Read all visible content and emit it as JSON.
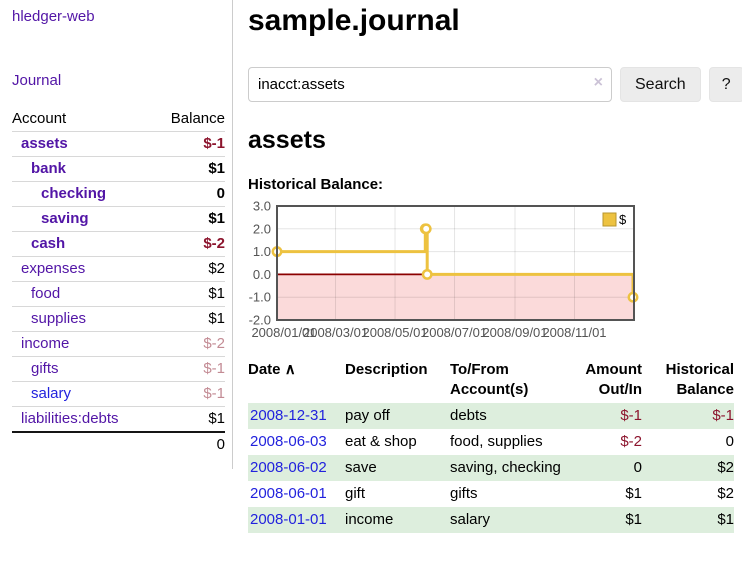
{
  "brand": "hledger-web",
  "sidebar": {
    "journal_link": "Journal",
    "accounts_table": {
      "headers": [
        "Account",
        "Balance"
      ],
      "rows": [
        {
          "account": "assets",
          "balance": "$-1",
          "depth": 0,
          "in_query": true
        },
        {
          "account": "bank",
          "balance": "$1",
          "depth": 1,
          "in_query": true
        },
        {
          "account": "checking",
          "balance": "0",
          "depth": 2,
          "in_query": true
        },
        {
          "account": "saving",
          "balance": "$1",
          "depth": 2,
          "in_query": true
        },
        {
          "account": "cash",
          "balance": "$-2",
          "depth": 1,
          "in_query": true
        },
        {
          "account": "expenses",
          "balance": "$2",
          "depth": 0,
          "in_query": false
        },
        {
          "account": "food",
          "balance": "$1",
          "depth": 1,
          "in_query": false
        },
        {
          "account": "supplies",
          "balance": "$1",
          "depth": 1,
          "in_query": false
        },
        {
          "account": "income",
          "balance": "$-2",
          "depth": 0,
          "in_query": false
        },
        {
          "account": "gifts",
          "balance": "$-1",
          "depth": 1,
          "in_query": false
        },
        {
          "account": "salary",
          "balance": "$-1",
          "depth": 1,
          "in_query": false,
          "link_color": "blue"
        },
        {
          "account": "liabilities:debts",
          "balance": "$1",
          "depth": 0,
          "in_query": false
        }
      ],
      "total": "0"
    }
  },
  "header": {
    "title": "sample.journal"
  },
  "search": {
    "value": "inacct:assets",
    "clear_icon": "×",
    "button_label": "Search",
    "help_label": "?"
  },
  "account_page": {
    "title": "assets",
    "chart_label": "Historical Balance:"
  },
  "chart_data": {
    "type": "line",
    "title": "Historical Balance:",
    "style": "step",
    "x_start": "2008-01-01",
    "x_end": "2009-01-01",
    "x_ticks": [
      "2008/01/01",
      "2008/03/01",
      "2008/05/01",
      "2008/07/01",
      "2008/09/01",
      "2008/11/01"
    ],
    "y_ticks": [
      3.0,
      2.0,
      1.0,
      0.0,
      -1.0,
      -2.0
    ],
    "ylim": [
      -2,
      3
    ],
    "grid": true,
    "legend_position": "top-right",
    "negative_region_color": "#fbdada",
    "zero_line_color": "#8b0000",
    "axis_text_color": "#545454",
    "series": [
      {
        "name": "$",
        "color": "#edc240",
        "points": [
          {
            "date": "2008-01-01",
            "value": 1
          },
          {
            "date": "2008-06-01",
            "value": 2
          },
          {
            "date": "2008-06-02",
            "value": 2
          },
          {
            "date": "2008-06-03",
            "value": 0
          },
          {
            "date": "2008-12-31",
            "value": -1
          }
        ]
      }
    ]
  },
  "register": {
    "sort_icon": "∧",
    "columns": [
      {
        "label": "Date"
      },
      {
        "label": "Description"
      },
      {
        "label": "To/From Account(s)"
      },
      {
        "label": "Amount Out/In"
      },
      {
        "label": "Historical Balance"
      }
    ],
    "rows": [
      {
        "date": "2008-12-31",
        "description": "pay off",
        "accounts": "debts",
        "amount": "$-1",
        "balance": "$-1"
      },
      {
        "date": "2008-06-03",
        "description": "eat & shop",
        "accounts": "food, supplies",
        "amount": "$-2",
        "balance": "0"
      },
      {
        "date": "2008-06-02",
        "description": "save",
        "accounts": "saving, checking",
        "amount": "0",
        "balance": "$2"
      },
      {
        "date": "2008-06-01",
        "description": "gift",
        "accounts": "gifts",
        "amount": "$1",
        "balance": "$2"
      },
      {
        "date": "2008-01-01",
        "description": "income",
        "accounts": "salary",
        "amount": "$1",
        "balance": "$1"
      }
    ]
  },
  "colors": {
    "accent_purple": "#5215a6",
    "link_blue": "#2222dd",
    "negative_strong": "#8c142d",
    "negative_faded": "#c38b94",
    "row_highlight_green": "#ddeedd",
    "chart_line_yellow": "#edc240",
    "chart_negative_pink": "#fbdada",
    "chart_zero_line": "#8b0000"
  }
}
